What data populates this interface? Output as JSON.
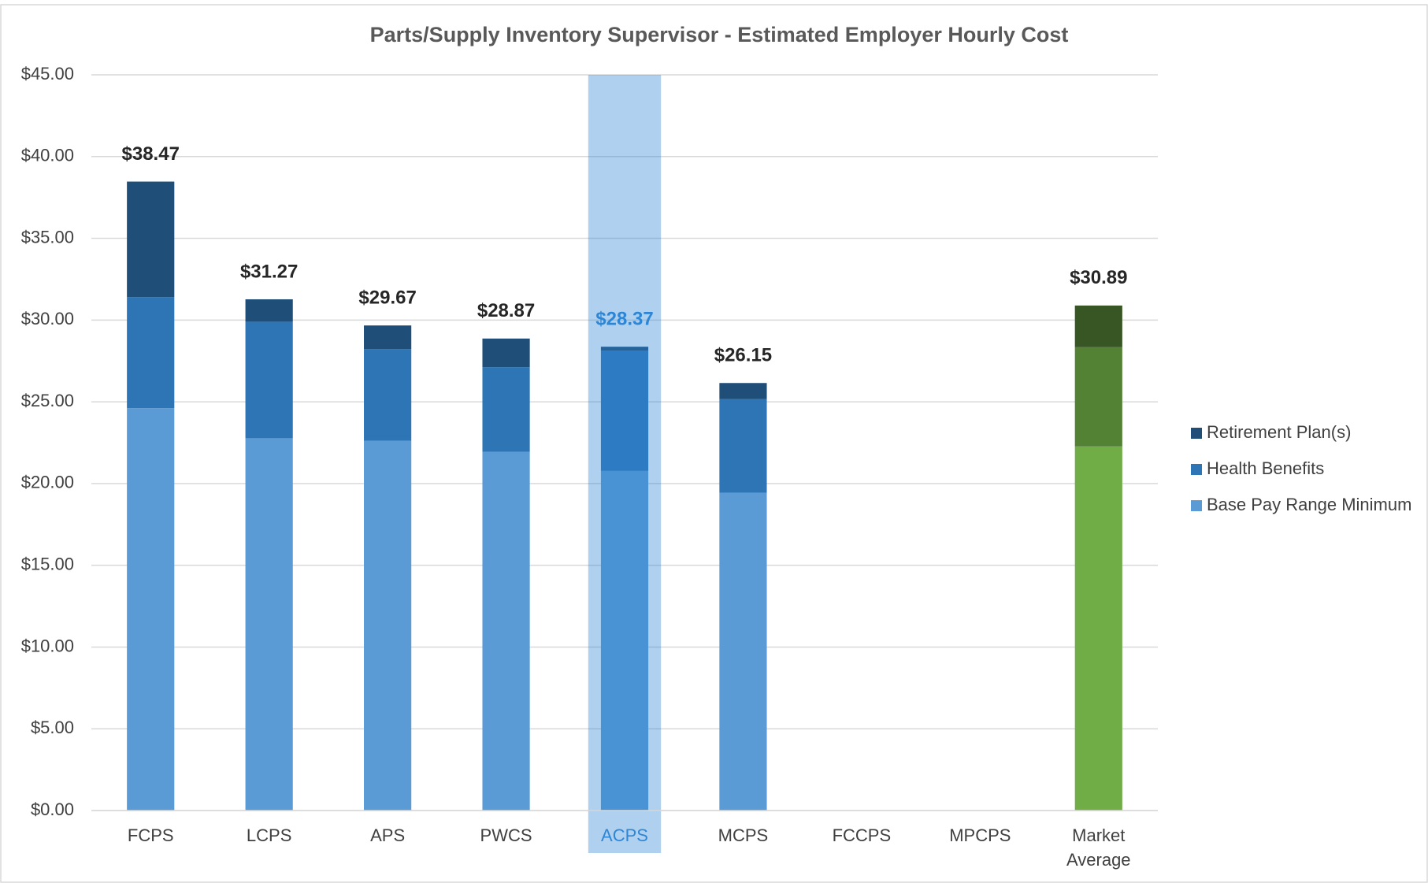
{
  "chart_data": {
    "type": "stacked_bar",
    "title": "Parts/Supply Inventory Supervisor - Estimated Employer Hourly Cost",
    "categories": [
      "FCPS",
      "LCPS",
      "APS",
      "PWCS",
      "ACPS",
      "MCPS",
      "FCCPS",
      "MPCPS",
      "Market Average"
    ],
    "series": [
      {
        "name": "Base Pay Range Minimum",
        "color": "#5b9bd5",
        "colors": [
          "#5b9bd5",
          "#5b9bd5",
          "#5b9bd5",
          "#5b9bd5",
          "#5b9bd5",
          "#5b9bd5",
          "#5b9bd5",
          "#5b9bd5",
          "#70ad47"
        ],
        "values": [
          24.61,
          22.77,
          22.61,
          21.94,
          20.77,
          19.43,
          null,
          null,
          22.27
        ]
      },
      {
        "name": "Health Benefits",
        "color": "#2e75b6",
        "colors": [
          "#2e75b6",
          "#2e75b6",
          "#2e75b6",
          "#2e75b6",
          "#2e75b6",
          "#2e75b6",
          "#2e75b6",
          "#2e75b6",
          "#548235"
        ],
        "values": [
          6.79,
          7.13,
          5.62,
          5.18,
          7.35,
          5.74,
          null,
          null,
          6.07
        ]
      },
      {
        "name": "Retirement Plan(s)",
        "color": "#1f4e79",
        "colors": [
          "#1f4e79",
          "#1f4e79",
          "#1f4e79",
          "#1f4e79",
          "#1f4e79",
          "#1f4e79",
          "#1f4e79",
          "#1f4e79",
          "#375623"
        ],
        "values": [
          7.07,
          1.37,
          1.44,
          1.75,
          0.25,
          0.98,
          null,
          null,
          2.55
        ]
      }
    ],
    "total_labels": [
      "$38.47",
      "$31.27",
      "$29.67",
      "$28.87",
      "$28.37",
      "$26.15",
      null,
      null,
      "$30.89"
    ],
    "highlight": "ACPS",
    "highlight_color": "#2e86d6",
    "ylim": [
      0,
      45
    ],
    "yticks": [
      {
        "value": 0,
        "label": "$0.00"
      },
      {
        "value": 5,
        "label": "$5.00"
      },
      {
        "value": 10,
        "label": "$10.00"
      },
      {
        "value": 15,
        "label": "$15.00"
      },
      {
        "value": 20,
        "label": "$20.00"
      },
      {
        "value": 25,
        "label": "$25.00"
      },
      {
        "value": 30,
        "label": "$30.00"
      },
      {
        "value": 35,
        "label": "$35.00"
      },
      {
        "value": 40,
        "label": "$40.00"
      },
      {
        "value": 45,
        "label": "$45.00"
      }
    ],
    "grid": true,
    "legend": "right"
  }
}
